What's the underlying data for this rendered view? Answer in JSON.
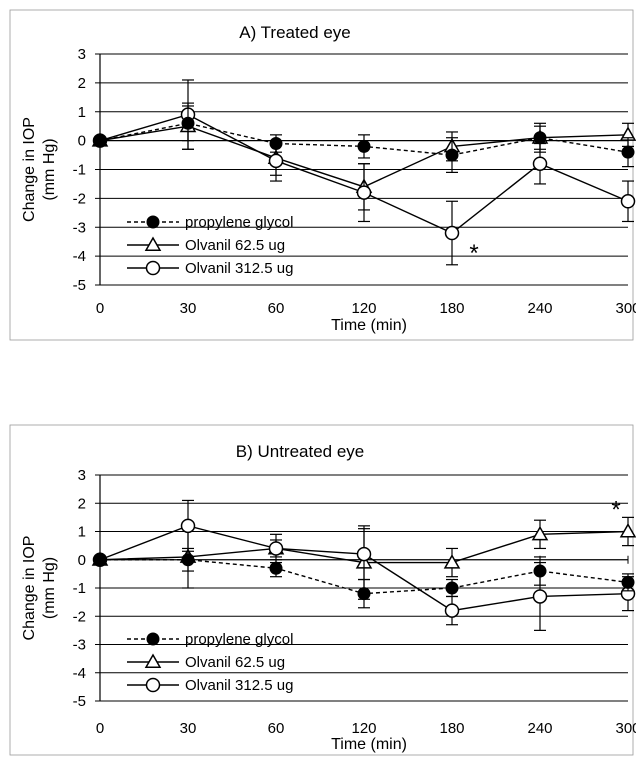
{
  "chart_data": [
    {
      "type": "line",
      "title": "A) Treated eye",
      "xlabel": "Time (min)",
      "ylabel": [
        "Change in IOP",
        "(mm Hg)"
      ],
      "categories": [
        "0",
        "30",
        "60",
        "120",
        "180",
        "240",
        "300"
      ],
      "ylim": [
        -5,
        3
      ],
      "yticks": [
        "3",
        "2",
        "1",
        "0",
        "-1",
        "-2",
        "-3",
        "-4",
        "-5"
      ],
      "legend_position": "bottom-left",
      "annotations": [
        {
          "text": "*",
          "category_index": 4,
          "value": -3.2
        }
      ],
      "series": [
        {
          "name": "propylene glycol",
          "marker": "filled-circle",
          "line": "dashed",
          "values": [
            0,
            0.6,
            -0.1,
            -0.2,
            -0.5,
            0.1,
            -0.4
          ],
          "errors": [
            0.1,
            0.6,
            0.3,
            0.4,
            0.6,
            0.5,
            0.5
          ]
        },
        {
          "name": "Olvanil 62.5 ug",
          "marker": "open-triangle",
          "line": "solid",
          "values": [
            0,
            0.5,
            -0.6,
            -1.6,
            -0.2,
            0.1,
            0.2
          ],
          "errors": [
            0.1,
            0.8,
            0.6,
            0.8,
            0.5,
            0.4,
            0.4
          ]
        },
        {
          "name": "Olvanil 312.5 ug",
          "marker": "open-circle",
          "line": "solid",
          "values": [
            0,
            0.9,
            -0.7,
            -1.8,
            -3.2,
            -0.8,
            -2.1
          ],
          "errors": [
            0.1,
            1.2,
            0.7,
            1.0,
            1.1,
            0.7,
            0.7
          ]
        }
      ]
    },
    {
      "type": "line",
      "title": "B) Untreated eye",
      "xlabel": "Time (min)",
      "ylabel": [
        "Change in IOP",
        "(mm Hg)"
      ],
      "categories": [
        "0",
        "30",
        "60",
        "120",
        "180",
        "240",
        "300"
      ],
      "ylim": [
        -5,
        3
      ],
      "yticks": [
        "3",
        "2",
        "1",
        "0",
        "-1",
        "-2",
        "-3",
        "-4",
        "-5"
      ],
      "legend_position": "bottom-left",
      "annotations": [
        {
          "text": "*",
          "category_index": 6,
          "value": 1.0
        }
      ],
      "series": [
        {
          "name": "propylene glycol",
          "marker": "filled-circle",
          "line": "dashed",
          "values": [
            0,
            0,
            -0.3,
            -1.2,
            -1.0,
            -0.4,
            -0.8
          ],
          "errors": [
            0.1,
            0.4,
            0.3,
            0.5,
            0.3,
            0.5,
            0.3
          ]
        },
        {
          "name": "Olvanil 62.5 ug",
          "marker": "open-triangle",
          "line": "solid",
          "values": [
            0,
            0.1,
            0.4,
            -0.1,
            -0.1,
            0.9,
            1.0
          ],
          "errors": [
            0.1,
            1.1,
            0.5,
            1.3,
            0.5,
            0.5,
            0.5
          ]
        },
        {
          "name": "Olvanil 312.5 ug",
          "marker": "open-circle",
          "line": "solid",
          "values": [
            0,
            1.2,
            0.4,
            0.2,
            -1.8,
            -1.3,
            -1.2
          ],
          "errors": [
            0.1,
            0.9,
            0.3,
            0.9,
            0.5,
            1.2,
            0.6
          ]
        }
      ]
    }
  ]
}
